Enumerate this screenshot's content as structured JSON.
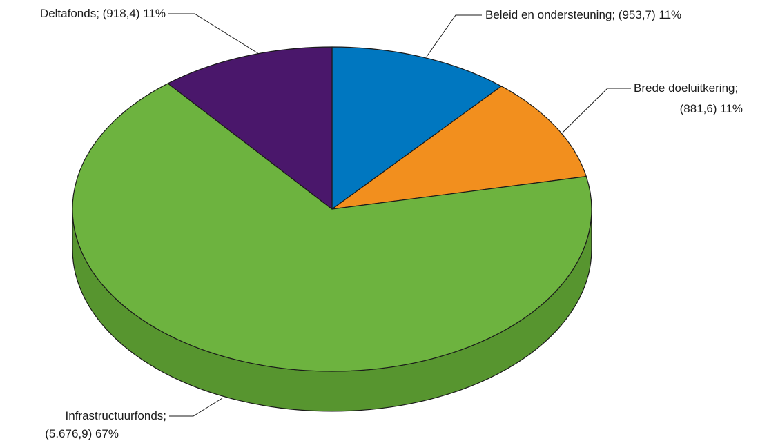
{
  "chart_data": {
    "type": "pie",
    "style": "3d",
    "title": "",
    "slices": [
      {
        "name": "Beleid en ondersteuning",
        "value": 953.7,
        "label_line1": "Beleid en ondersteuning; (953,7) 11%",
        "label_line2": "",
        "color": "#0077c0",
        "side_color": "#005a91"
      },
      {
        "name": "Brede doeluitkering",
        "value": 881.6,
        "label_line1": "Brede doeluitkering;",
        "label_line2": "(881,6) 11%",
        "color": "#f28f1e",
        "side_color": "#c06f12"
      },
      {
        "name": "Infrastructuurfonds",
        "value": 5676.9,
        "label_line1": "Infrastructuurfonds;",
        "label_line2": "(5.676,9) 67%",
        "color": "#6db33f",
        "side_color": "#57952f"
      },
      {
        "name": "Deltafonds",
        "value": 918.4,
        "label_line1": "Deltafonds; (918,4) 11%",
        "label_line2": "",
        "color": "#4a176b",
        "side_color": "#351050"
      }
    ]
  }
}
